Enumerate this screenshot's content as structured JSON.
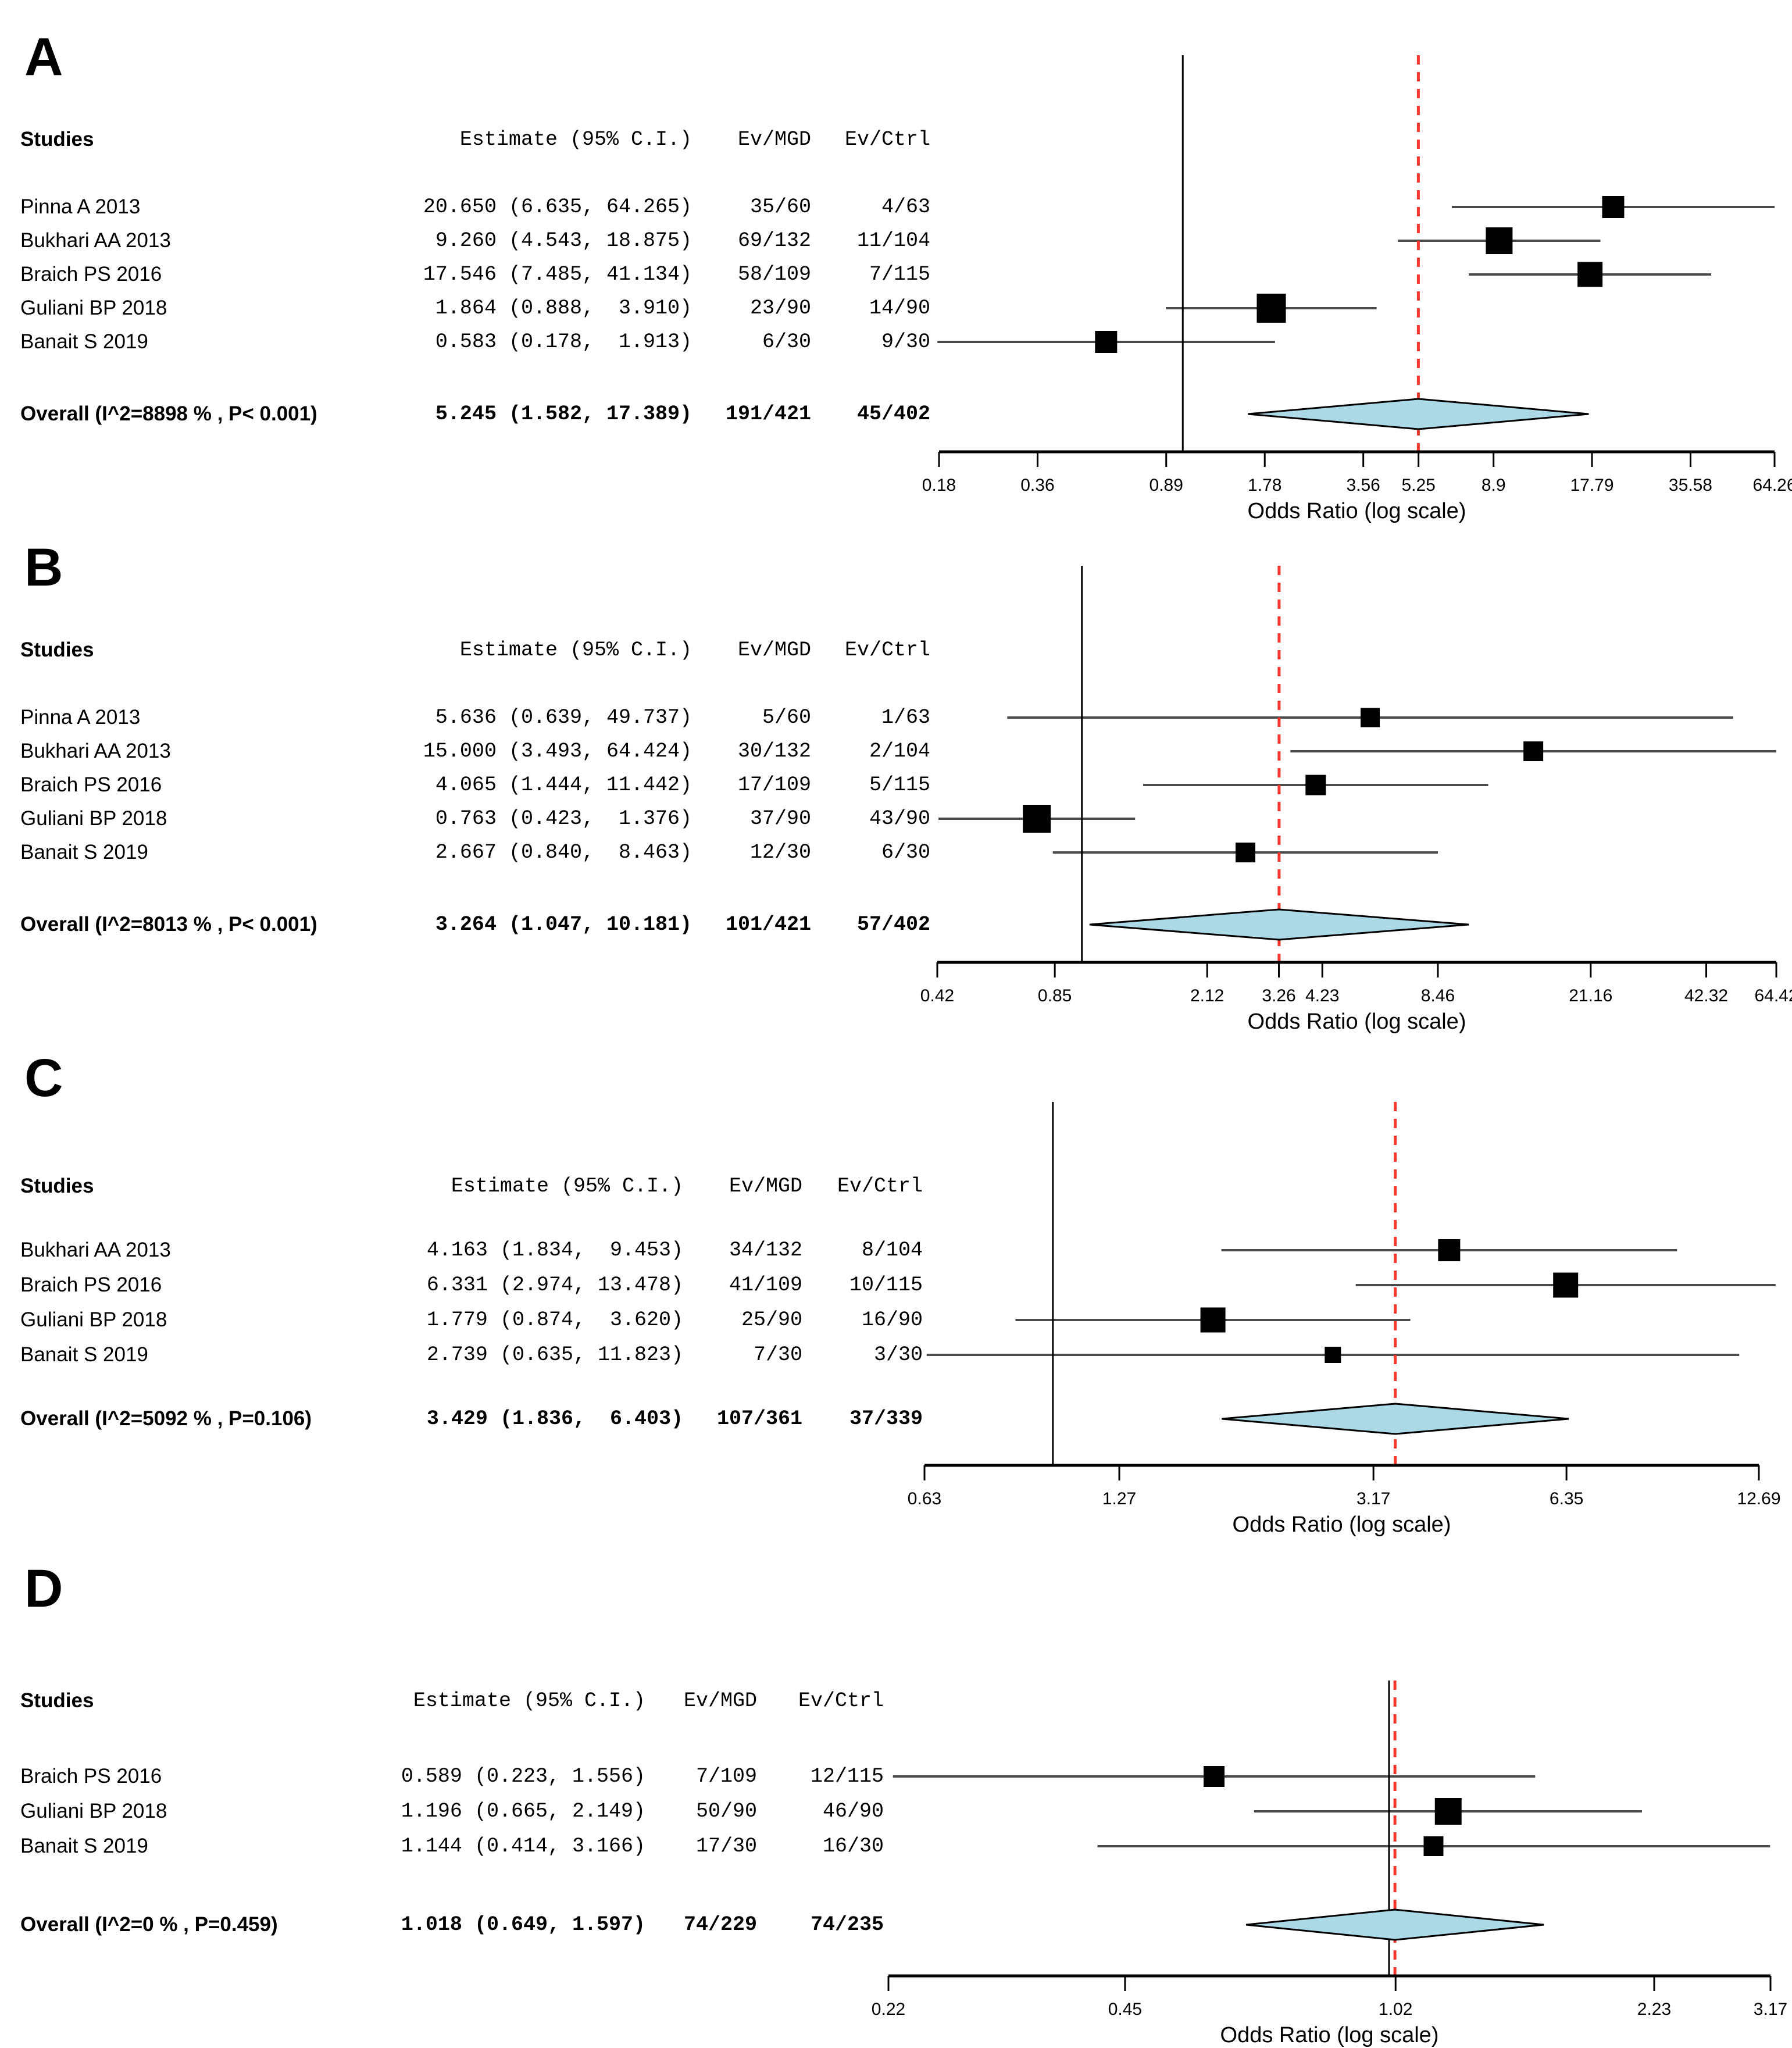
{
  "axis_title": "Odds Ratio (log scale)",
  "headers": {
    "studies": "Studies",
    "estimate": "Estimate (95% C.I.)",
    "ev_mgd": "Ev/MGD",
    "ev_ctrl": "Ev/Ctrl"
  },
  "colors": {
    "marker": "#000000",
    "ci_line": "#4a4a4a",
    "null_line": "#000000",
    "overall_line": "#f5392e",
    "diamond_fill": "#abd9e5",
    "diamond_stroke": "#000000",
    "axis": "#000000"
  },
  "chart_data": [
    {
      "type": "scatter",
      "subtype": "forest_plot",
      "panel": "A",
      "xlabel": "Odds Ratio (log scale)",
      "xscale": "log",
      "ticks": [
        "0.18",
        "0.36",
        "0.89",
        "1.78",
        "3.56",
        "5.25",
        "8.9",
        "17.79",
        "35.58",
        "64.26"
      ],
      "null_value": 1,
      "studies": [
        {
          "name": "Pinna A 2013",
          "est": 20.65,
          "lo": 6.635,
          "hi": 64.265,
          "estimate_text": "20.650 (6.635, 64.265)",
          "ev_mgd": "35/60",
          "ev_ctrl": "4/63",
          "marker_size": 38
        },
        {
          "name": "Bukhari AA 2013",
          "est": 9.26,
          "lo": 4.543,
          "hi": 18.875,
          "estimate_text": " 9.260 (4.543, 18.875)",
          "ev_mgd": "69/132",
          "ev_ctrl": "11/104",
          "marker_size": 46
        },
        {
          "name": "Braich PS 2016",
          "est": 17.546,
          "lo": 7.485,
          "hi": 41.134,
          "estimate_text": "17.546 (7.485, 41.134)",
          "ev_mgd": "58/109",
          "ev_ctrl": "7/115",
          "marker_size": 43
        },
        {
          "name": "Guliani BP 2018",
          "est": 1.864,
          "lo": 0.888,
          "hi": 3.91,
          "estimate_text": " 1.864 (0.888,  3.910)",
          "ev_mgd": "23/90",
          "ev_ctrl": "14/90",
          "marker_size": 50
        },
        {
          "name": "Banait S 2019",
          "est": 0.583,
          "lo": 0.178,
          "hi": 1.913,
          "estimate_text": " 0.583 (0.178,  1.913)",
          "ev_mgd": "6/30",
          "ev_ctrl": "9/30",
          "marker_size": 38
        }
      ],
      "overall": {
        "name": "Overall (I^2=8898 % , P< 0.001)",
        "est": 5.245,
        "lo": 1.582,
        "hi": 17.389,
        "estimate_text": " 5.245 (1.582, 17.389)",
        "ev_mgd": "191/421",
        "ev_ctrl": "45/402"
      }
    },
    {
      "type": "scatter",
      "subtype": "forest_plot",
      "panel": "B",
      "xlabel": "Odds Ratio (log scale)",
      "xscale": "log",
      "ticks": [
        "0.42",
        "0.85",
        "2.12",
        "3.26",
        "4.23",
        "8.46",
        "21.16",
        "42.32",
        "64.42"
      ],
      "null_value": 1,
      "studies": [
        {
          "name": "Pinna A 2013",
          "est": 5.636,
          "lo": 0.639,
          "hi": 49.737,
          "estimate_text": " 5.636 (0.639, 49.737)",
          "ev_mgd": "5/60",
          "ev_ctrl": "1/63",
          "marker_size": 33
        },
        {
          "name": "Bukhari AA 2013",
          "est": 15.0,
          "lo": 3.493,
          "hi": 64.424,
          "estimate_text": "15.000 (3.493, 64.424)",
          "ev_mgd": "30/132",
          "ev_ctrl": "2/104",
          "marker_size": 34
        },
        {
          "name": "Braich PS 2016",
          "est": 4.065,
          "lo": 1.444,
          "hi": 11.442,
          "estimate_text": " 4.065 (1.444, 11.442)",
          "ev_mgd": "17/109",
          "ev_ctrl": "5/115",
          "marker_size": 35
        },
        {
          "name": "Guliani BP 2018",
          "est": 0.763,
          "lo": 0.423,
          "hi": 1.376,
          "estimate_text": " 0.763 (0.423,  1.376)",
          "ev_mgd": "37/90",
          "ev_ctrl": "43/90",
          "marker_size": 48
        },
        {
          "name": "Banait S 2019",
          "est": 2.667,
          "lo": 0.84,
          "hi": 8.463,
          "estimate_text": " 2.667 (0.840,  8.463)",
          "ev_mgd": "12/30",
          "ev_ctrl": "6/30",
          "marker_size": 34
        }
      ],
      "overall": {
        "name": "Overall (I^2=8013 % , P< 0.001)",
        "est": 3.264,
        "lo": 1.047,
        "hi": 10.181,
        "estimate_text": " 3.264 (1.047, 10.181)",
        "ev_mgd": "101/421",
        "ev_ctrl": "57/402"
      }
    },
    {
      "type": "scatter",
      "subtype": "forest_plot",
      "panel": "C",
      "xlabel": "Odds Ratio (log scale)",
      "xscale": "log",
      "ticks": [
        "0.63",
        "1.27",
        "3.17",
        "6.35",
        "12.69"
      ],
      "null_value": 1,
      "studies": [
        {
          "name": "Bukhari AA 2013",
          "est": 4.163,
          "lo": 1.834,
          "hi": 9.453,
          "estimate_text": "4.163 (1.834,  9.453)",
          "ev_mgd": "34/132",
          "ev_ctrl": "8/104",
          "marker_size": 38
        },
        {
          "name": "Braich PS 2016",
          "est": 6.331,
          "lo": 2.974,
          "hi": 13.478,
          "estimate_text": "6.331 (2.974, 13.478)",
          "ev_mgd": "41/109",
          "ev_ctrl": "10/115",
          "marker_size": 43
        },
        {
          "name": "Guliani BP 2018",
          "est": 1.779,
          "lo": 0.874,
          "hi": 3.62,
          "estimate_text": "1.779 (0.874,  3.620)",
          "ev_mgd": "25/90",
          "ev_ctrl": "16/90",
          "marker_size": 43
        },
        {
          "name": "Banait S 2019",
          "est": 2.739,
          "lo": 0.635,
          "hi": 11.823,
          "estimate_text": "2.739 (0.635, 11.823)",
          "ev_mgd": "7/30",
          "ev_ctrl": "3/30",
          "marker_size": 28
        }
      ],
      "overall": {
        "name": "Overall (I^2=5092 % , P=0.106)",
        "est": 3.429,
        "lo": 1.836,
        "hi": 6.403,
        "estimate_text": "3.429 (1.836,  6.403)",
        "ev_mgd": "107/361",
        "ev_ctrl": "37/339"
      }
    },
    {
      "type": "scatter",
      "subtype": "forest_plot",
      "panel": "D",
      "xlabel": "Odds Ratio (log scale)",
      "xscale": "log",
      "ticks": [
        "0.22",
        "0.45",
        "1.02",
        "2.23",
        "3.17"
      ],
      "null_value": 1,
      "studies": [
        {
          "name": "Braich PS 2016",
          "est": 0.589,
          "lo": 0.223,
          "hi": 1.556,
          "estimate_text": "0.589 (0.223, 1.556)",
          "ev_mgd": "7/109",
          "ev_ctrl": "12/115",
          "marker_size": 36
        },
        {
          "name": "Guliani BP 2018",
          "est": 1.196,
          "lo": 0.665,
          "hi": 2.149,
          "estimate_text": "1.196 (0.665, 2.149)",
          "ev_mgd": "50/90",
          "ev_ctrl": "46/90",
          "marker_size": 46
        },
        {
          "name": "Banait S 2019",
          "est": 1.144,
          "lo": 0.414,
          "hi": 3.166,
          "estimate_text": "1.144 (0.414, 3.166)",
          "ev_mgd": "17/30",
          "ev_ctrl": "16/30",
          "marker_size": 34
        }
      ],
      "overall": {
        "name": "Overall (I^2=0 % , P=0.459)",
        "est": 1.018,
        "lo": 0.649,
        "hi": 1.597,
        "estimate_text": "1.018 (0.649, 1.597)",
        "ev_mgd": "74/229",
        "ev_ctrl": "74/235"
      }
    }
  ]
}
